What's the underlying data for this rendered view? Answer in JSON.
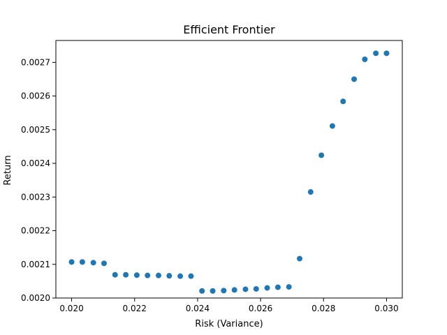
{
  "chart_data": {
    "type": "scatter",
    "title": "Efficient Frontier",
    "xlabel": "Risk (Variance)",
    "ylabel": "Return",
    "xlim": [
      0.0195,
      0.0305
    ],
    "ylim": [
      0.002,
      0.002765
    ],
    "xticks": [
      0.02,
      0.022,
      0.024,
      0.026,
      0.028,
      0.03
    ],
    "xtick_labels": [
      "0.020",
      "0.022",
      "0.024",
      "0.026",
      "0.028",
      "0.030"
    ],
    "yticks": [
      0.002,
      0.0021,
      0.0022,
      0.0023,
      0.0024,
      0.0025,
      0.0026,
      0.0027
    ],
    "ytick_labels": [
      "0.0020",
      "0.0021",
      "0.0022",
      "0.0023",
      "0.0024",
      "0.0025",
      "0.0026",
      "0.0027"
    ],
    "grid": false,
    "color": "#1f77b4",
    "series": [
      {
        "x": [
          0.02,
          0.02034,
          0.02069,
          0.02103,
          0.02138,
          0.02172,
          0.02207,
          0.02241,
          0.02276,
          0.0231,
          0.02345,
          0.02379,
          0.02414,
          0.02448,
          0.02483,
          0.02517,
          0.02552,
          0.02586,
          0.02621,
          0.02655,
          0.0269,
          0.02724,
          0.02759,
          0.02793,
          0.02828,
          0.02862,
          0.02897,
          0.02931,
          0.02966,
          0.03
        ],
        "y": [
          0.002107,
          0.002107,
          0.002105,
          0.002103,
          0.002069,
          0.002069,
          0.002068,
          0.002067,
          0.002067,
          0.002066,
          0.002065,
          0.002065,
          0.002021,
          0.002021,
          0.002022,
          0.002024,
          0.002026,
          0.002027,
          0.00203,
          0.002032,
          0.002033,
          0.002117,
          0.002315,
          0.002424,
          0.002511,
          0.002584,
          0.00265,
          0.002709,
          0.002727,
          0.002727
        ]
      }
    ]
  }
}
